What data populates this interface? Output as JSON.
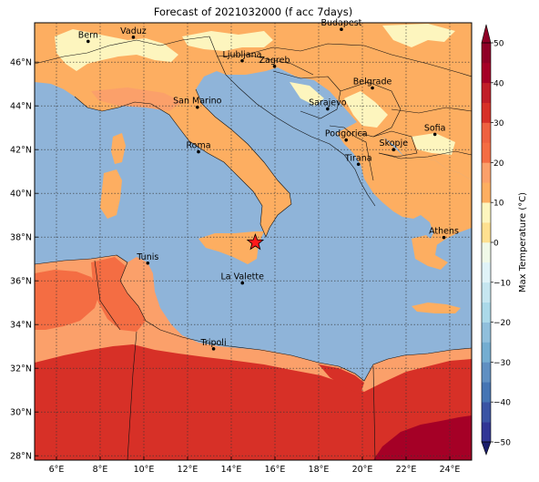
{
  "title": "Forecast of 2021032000 (f acc 7days)",
  "map": {
    "lon_range": [
      5,
      25
    ],
    "lat_range": [
      27.8,
      47.8
    ],
    "lon_ticks": [
      {
        "v": 6,
        "label": "6°E"
      },
      {
        "v": 8,
        "label": "8°E"
      },
      {
        "v": 10,
        "label": "10°E"
      },
      {
        "v": 12,
        "label": "12°E"
      },
      {
        "v": 14,
        "label": "14°E"
      },
      {
        "v": 16,
        "label": "16°E"
      },
      {
        "v": 18,
        "label": "18°E"
      },
      {
        "v": 20,
        "label": "20°E"
      },
      {
        "v": 22,
        "label": "22°E"
      },
      {
        "v": 24,
        "label": "24°E"
      }
    ],
    "lat_ticks": [
      {
        "v": 28,
        "label": "28°N"
      },
      {
        "v": 30,
        "label": "30°N"
      },
      {
        "v": 32,
        "label": "32°N"
      },
      {
        "v": 34,
        "label": "34°N"
      },
      {
        "v": 36,
        "label": "36°N"
      },
      {
        "v": 38,
        "label": "38°N"
      },
      {
        "v": 40,
        "label": "40°N"
      },
      {
        "v": 42,
        "label": "42°N"
      },
      {
        "v": 44,
        "label": "44°N"
      },
      {
        "v": 46,
        "label": "46°N"
      }
    ],
    "cities": [
      {
        "name": "Bern",
        "lon": 7.45,
        "lat": 46.95
      },
      {
        "name": "Vaduz",
        "lon": 9.52,
        "lat": 47.14
      },
      {
        "name": "Budapest",
        "lon": 19.04,
        "lat": 47.5
      },
      {
        "name": "Ljubljana",
        "lon": 14.5,
        "lat": 46.06
      },
      {
        "name": "Zagreb",
        "lon": 15.98,
        "lat": 45.81
      },
      {
        "name": "Belgrade",
        "lon": 20.46,
        "lat": 44.82
      },
      {
        "name": "San Marino",
        "lon": 12.45,
        "lat": 43.94
      },
      {
        "name": "Sarajevo",
        "lon": 18.41,
        "lat": 43.86
      },
      {
        "name": "Sofia",
        "lon": 23.32,
        "lat": 42.7
      },
      {
        "name": "Podgorica",
        "lon": 19.26,
        "lat": 42.44
      },
      {
        "name": "Skopje",
        "lon": 21.43,
        "lat": 42.0
      },
      {
        "name": "Roma",
        "lon": 12.5,
        "lat": 41.9
      },
      {
        "name": "Tirana",
        "lon": 19.82,
        "lat": 41.33
      },
      {
        "name": "Athens",
        "lon": 23.73,
        "lat": 37.98
      },
      {
        "name": "Tunis",
        "lon": 10.18,
        "lat": 36.81
      },
      {
        "name": "La Valette",
        "lon": 14.51,
        "lat": 35.9
      },
      {
        "name": "Tripoli",
        "lon": 13.19,
        "lat": 32.89
      }
    ],
    "marker": {
      "lon": 15.1,
      "lat": 37.75,
      "symbol": "red-star"
    }
  },
  "colorbar": {
    "label": "Max Temperature (°C)",
    "ticks": [
      "50",
      "40",
      "30",
      "20",
      "10",
      "0",
      "−10",
      "−20",
      "−30",
      "−40",
      "−50"
    ],
    "min": -50,
    "max": 50,
    "step": 5,
    "colors": [
      "#313695",
      "#3a54a4",
      "#4575b4",
      "#5f8fc2",
      "#74add1",
      "#90bfdc",
      "#abd9e9",
      "#c6e6f0",
      "#e0f3f8",
      "#f0f9e8",
      "#fee090",
      "#fdf5be",
      "#fdae61",
      "#fba06a",
      "#f46d43",
      "#ee6140",
      "#d73027",
      "#c11e28",
      "#a50026",
      "#8f0026"
    ]
  },
  "sea_color": "#8fb4d9"
}
